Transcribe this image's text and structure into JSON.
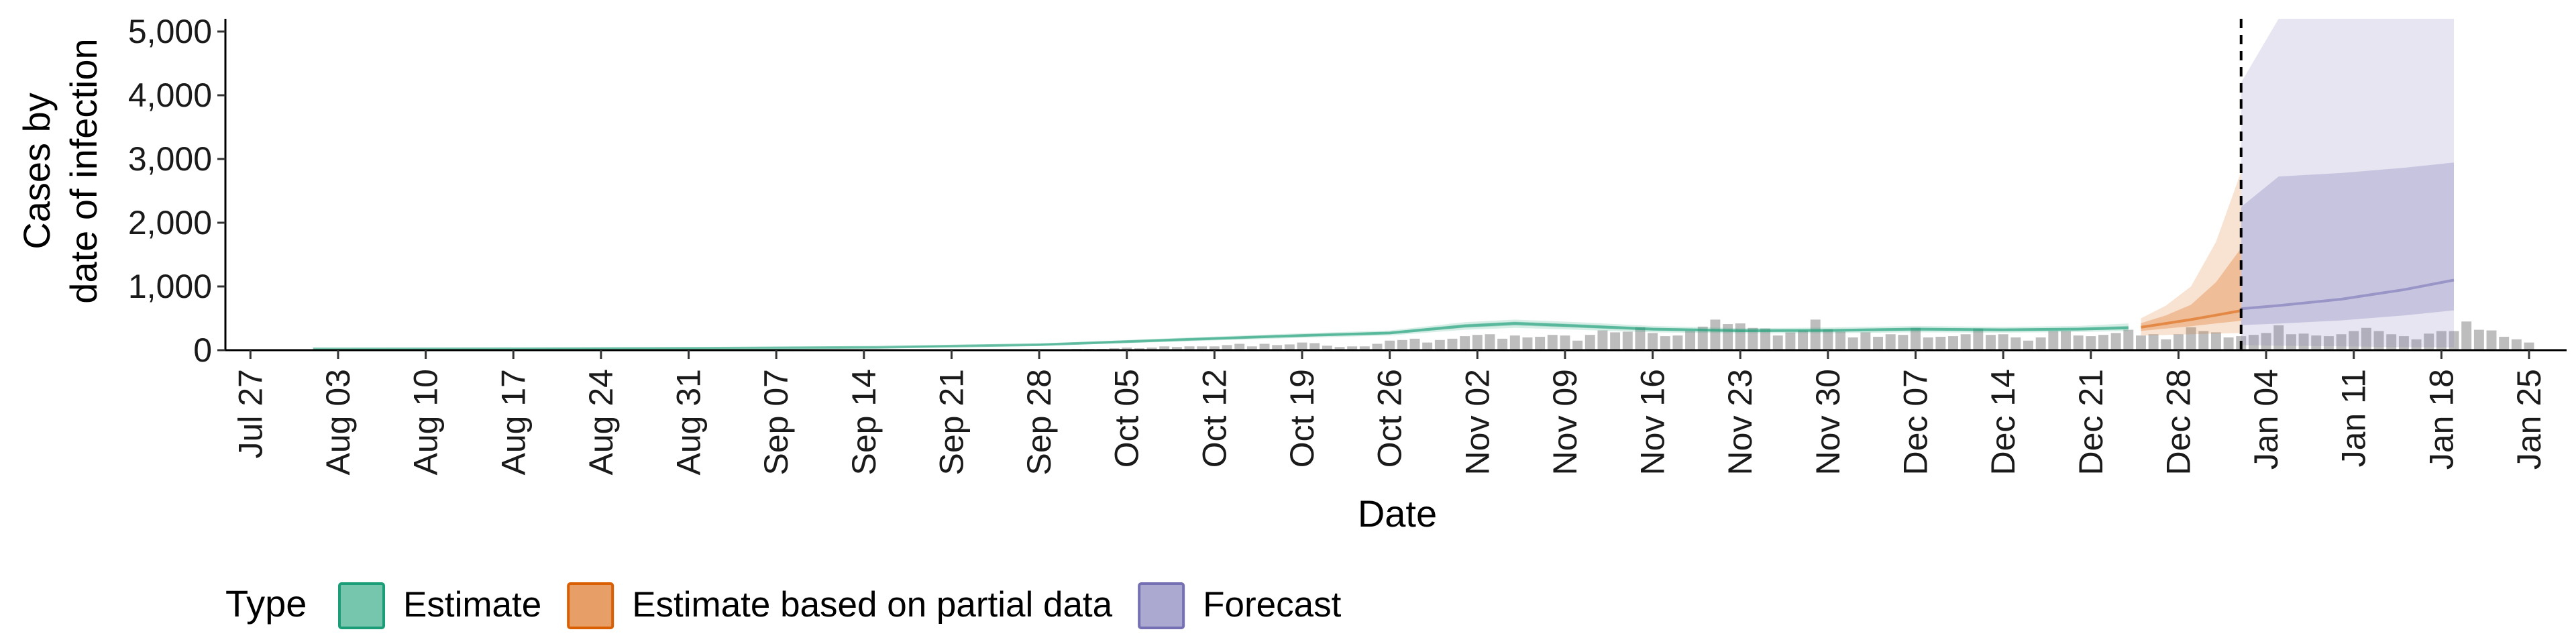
{
  "chart_data": {
    "type": "area",
    "xlabel": "Date",
    "ylabel_lines": [
      "Cases by",
      "date of infection"
    ],
    "ylim": [
      0,
      5200
    ],
    "y_ticks": [
      0,
      1000,
      2000,
      3000,
      4000,
      5000
    ],
    "y_tick_labels": [
      "0",
      "1,000",
      "2,000",
      "3,000",
      "4,000",
      "5,000"
    ],
    "x_range": [
      "2020-07-25",
      "2021-01-28"
    ],
    "x_tick_dates": [
      "2020-07-27",
      "2020-08-03",
      "2020-08-10",
      "2020-08-17",
      "2020-08-24",
      "2020-08-31",
      "2020-09-07",
      "2020-09-14",
      "2020-09-21",
      "2020-09-28",
      "2020-10-05",
      "2020-10-12",
      "2020-10-19",
      "2020-10-26",
      "2020-11-02",
      "2020-11-09",
      "2020-11-16",
      "2020-11-23",
      "2020-11-30",
      "2020-12-07",
      "2020-12-14",
      "2020-12-21",
      "2020-12-28",
      "2021-01-04",
      "2021-01-11",
      "2021-01-18",
      "2021-01-25"
    ],
    "x_tick_labels": [
      "Jul 27",
      "Aug 03",
      "Aug 10",
      "Aug 17",
      "Aug 24",
      "Aug 31",
      "Sep 07",
      "Sep 14",
      "Sep 21",
      "Sep 28",
      "Oct 05",
      "Oct 12",
      "Oct 19",
      "Oct 26",
      "Nov 02",
      "Nov 09",
      "Nov 16",
      "Nov 23",
      "Nov 30",
      "Dec 07",
      "Dec 14",
      "Dec 21",
      "Dec 28",
      "Jan 04",
      "Jan 11",
      "Jan 18",
      "Jan 25"
    ],
    "forecast_start": "2021-01-02",
    "reported_cases": {
      "start": "2020-08-01",
      "values": [
        0,
        0,
        0,
        0,
        0,
        0,
        0,
        0,
        0,
        0,
        0,
        0,
        0,
        0,
        0,
        0,
        0,
        0,
        0,
        0,
        0,
        0,
        0,
        0,
        0,
        0,
        0,
        0,
        0,
        0,
        0,
        0,
        0,
        0,
        0,
        0,
        0,
        0,
        0,
        0,
        0,
        0,
        0,
        0,
        0,
        0,
        0,
        0,
        0,
        0,
        0,
        0,
        0,
        0,
        0,
        0,
        0,
        0,
        0,
        0,
        0,
        20,
        20,
        20,
        30,
        40,
        30,
        40,
        60,
        50,
        60,
        60,
        60,
        80,
        100,
        60,
        100,
        80,
        90,
        120,
        110,
        70,
        50,
        60,
        60,
        100,
        150,
        160,
        180,
        120,
        160,
        180,
        220,
        240,
        250,
        180,
        230,
        200,
        210,
        240,
        230,
        150,
        240,
        310,
        280,
        290,
        360,
        270,
        220,
        230,
        300,
        370,
        480,
        410,
        420,
        350,
        340,
        230,
        280,
        310,
        480,
        330,
        290,
        200,
        280,
        210,
        250,
        240,
        350,
        200,
        210,
        220,
        250,
        340,
        240,
        250,
        200,
        150,
        200,
        300,
        300,
        230,
        220,
        240,
        270,
        320,
        230,
        250,
        170,
        250,
        360,
        300,
        280,
        200,
        220,
        240,
        270,
        390,
        250,
        260,
        230,
        220,
        250,
        300,
        350,
        300,
        250,
        220,
        170,
        260,
        300,
        300,
        450,
        320,
        310,
        210,
        170,
        120
      ]
    },
    "series": [
      {
        "name": "Estimate",
        "color": "#1b9e77",
        "points": [
          [
            "2020-08-01",
            20,
            15,
            25
          ],
          [
            "2020-08-15",
            22,
            16,
            28
          ],
          [
            "2020-09-01",
            30,
            22,
            38
          ],
          [
            "2020-09-15",
            45,
            35,
            55
          ],
          [
            "2020-09-28",
            85,
            70,
            100
          ],
          [
            "2020-10-10",
            170,
            140,
            200
          ],
          [
            "2020-10-19",
            230,
            195,
            265
          ],
          [
            "2020-10-26",
            270,
            230,
            310
          ],
          [
            "2020-11-01",
            380,
            320,
            440
          ],
          [
            "2020-11-05",
            420,
            350,
            480
          ],
          [
            "2020-11-10",
            380,
            320,
            440
          ],
          [
            "2020-11-16",
            330,
            280,
            380
          ],
          [
            "2020-11-23",
            305,
            265,
            345
          ],
          [
            "2020-11-30",
            310,
            265,
            355
          ],
          [
            "2020-12-07",
            330,
            280,
            380
          ],
          [
            "2020-12-14",
            320,
            275,
            365
          ],
          [
            "2020-12-20",
            330,
            285,
            380
          ],
          [
            "2020-12-24",
            350,
            300,
            420
          ]
        ]
      },
      {
        "name": "Estimate based on partial data",
        "color": "#d95f02",
        "points": [
          [
            "2020-12-25",
            360,
            230,
            500
          ],
          [
            "2020-12-27",
            420,
            240,
            700
          ],
          [
            "2020-12-29",
            480,
            250,
            1000
          ],
          [
            "2020-12-31",
            550,
            260,
            1700
          ],
          [
            "2021-01-02",
            620,
            270,
            2800
          ]
        ]
      },
      {
        "name": "Forecast",
        "color": "#7570b3",
        "points": [
          [
            "2021-01-02",
            650,
            80,
            4200
          ],
          [
            "2021-01-05",
            700,
            70,
            5200
          ],
          [
            "2021-01-10",
            800,
            60,
            5200
          ],
          [
            "2021-01-15",
            950,
            50,
            5200
          ],
          [
            "2021-01-19",
            1100,
            45,
            5200
          ]
        ]
      }
    ],
    "legend": {
      "title": "Type",
      "position": "bottom",
      "entries": [
        "Estimate",
        "Estimate based on partial data",
        "Forecast"
      ]
    }
  }
}
